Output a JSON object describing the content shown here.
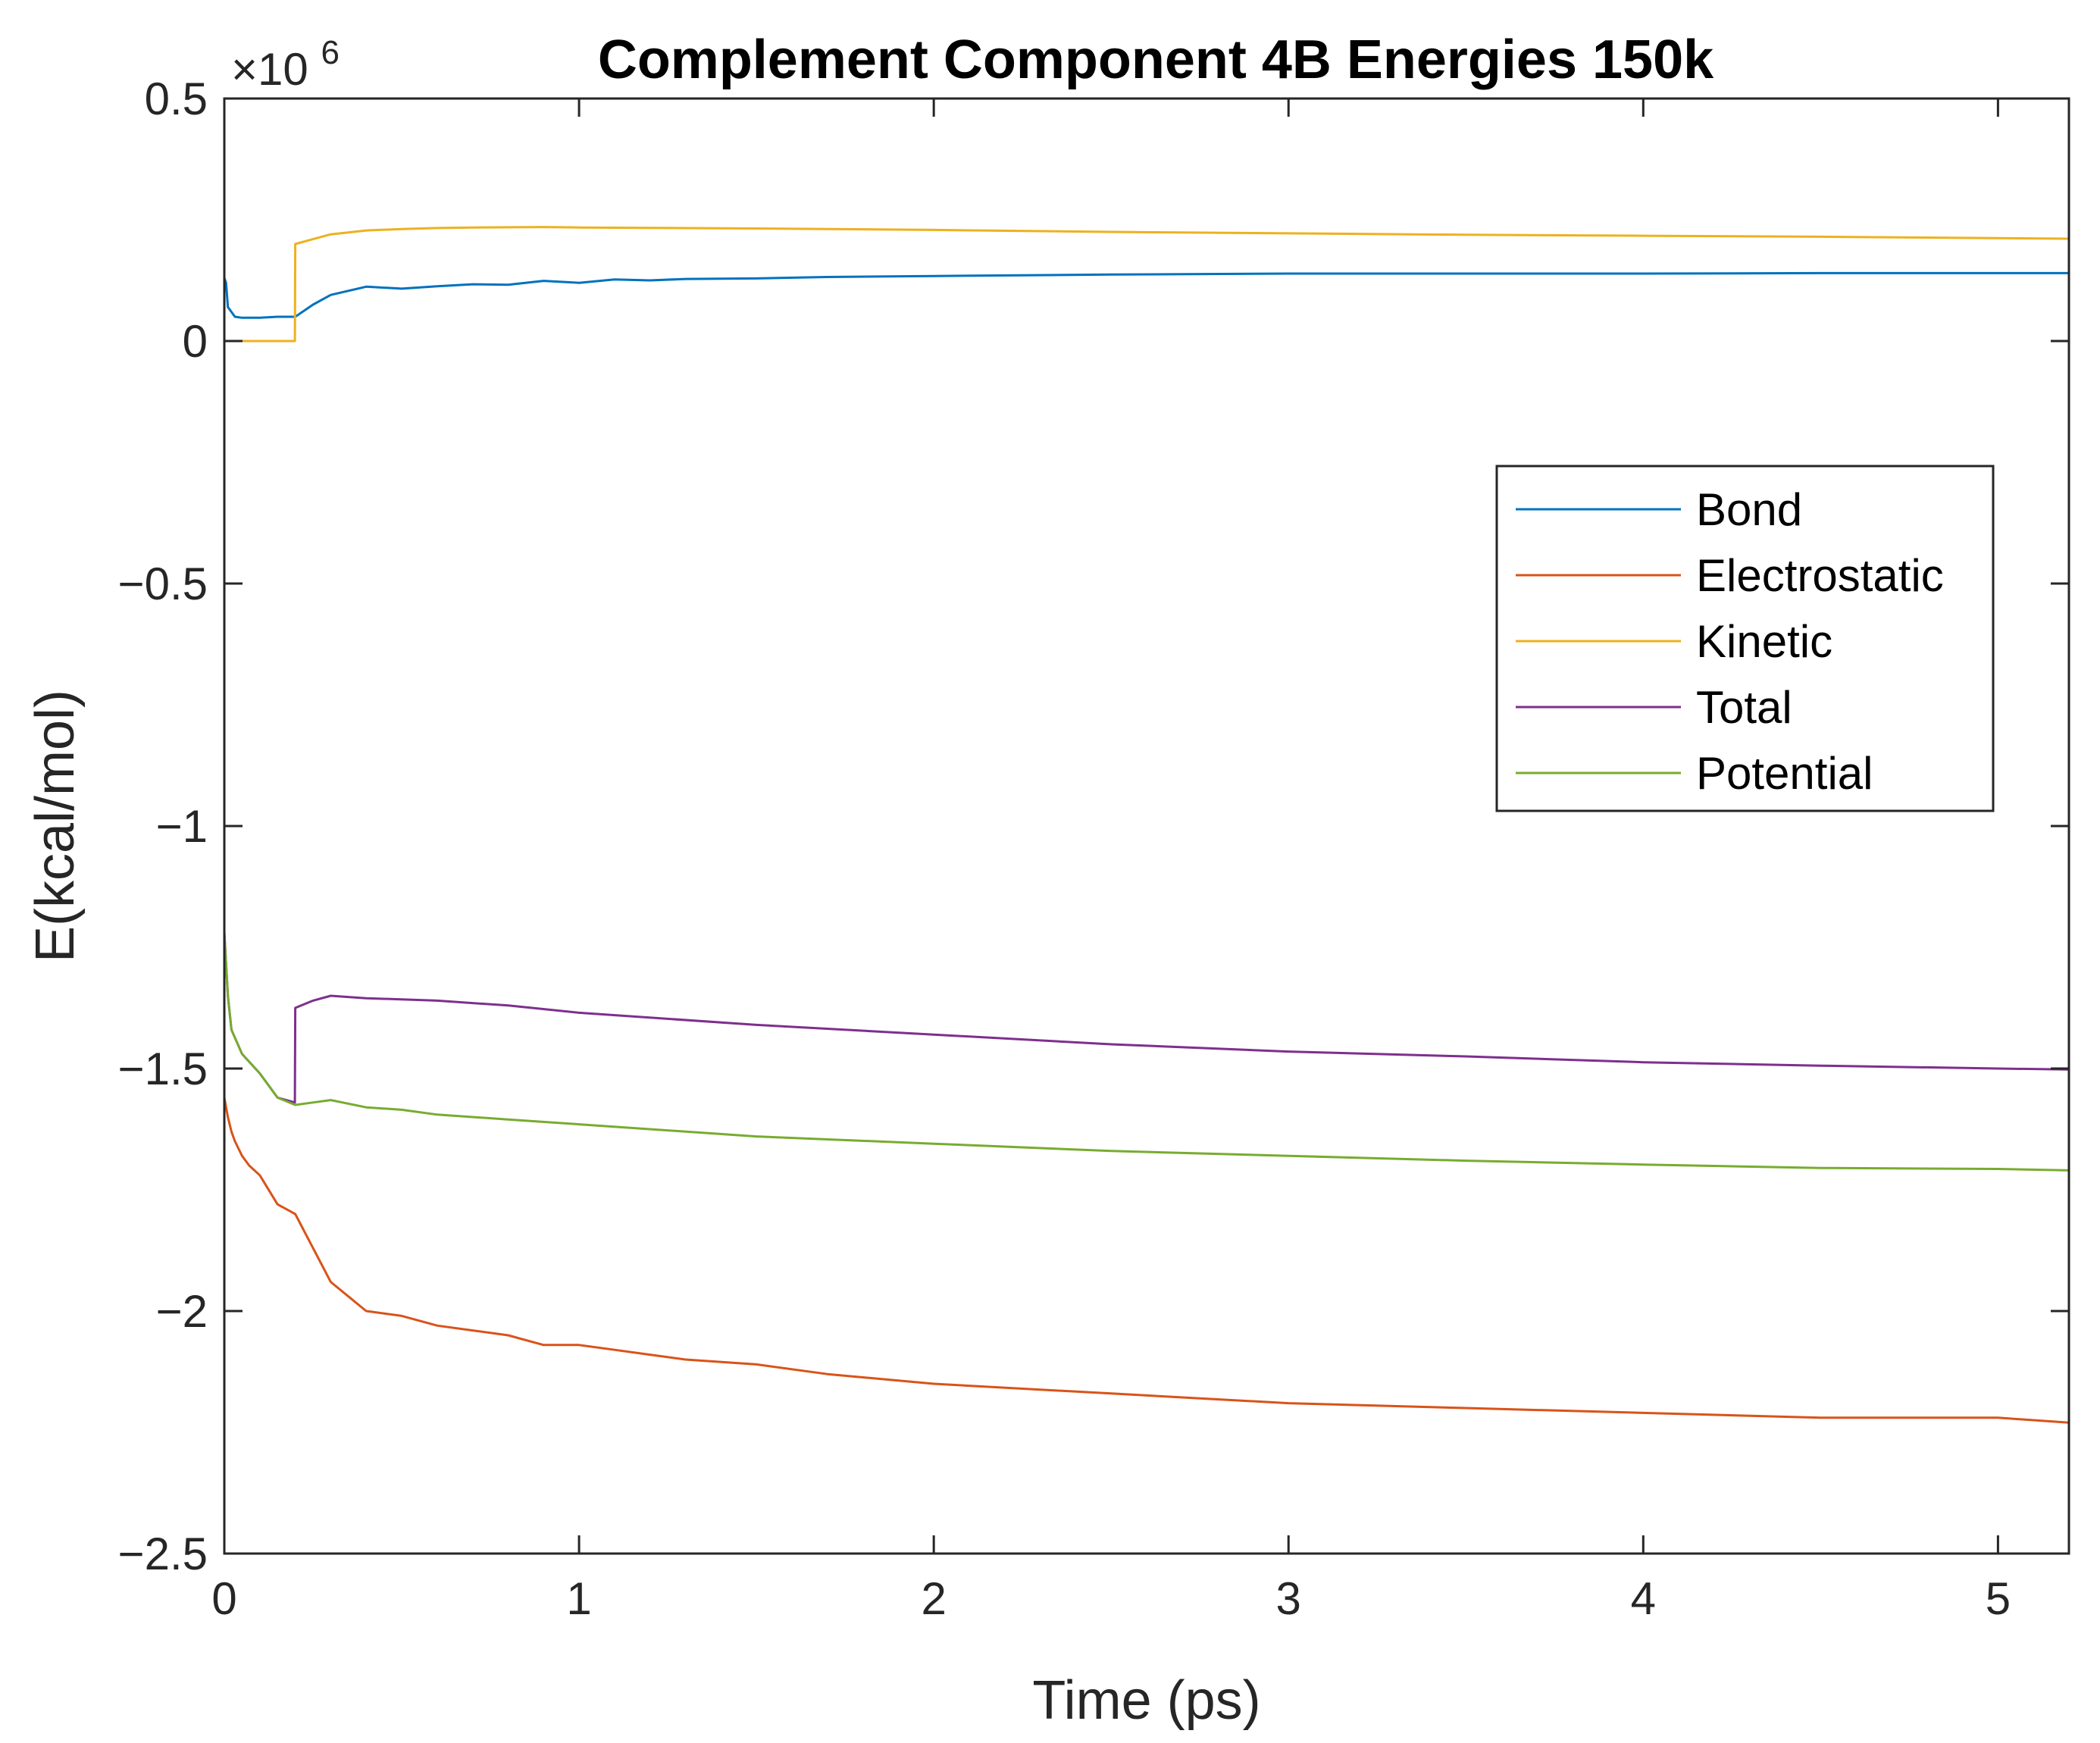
{
  "chart_data": {
    "type": "line",
    "title": "Complement Component 4B Energies 150k",
    "xlabel": "Time (ps)",
    "ylabel": "E(kcal/mol)",
    "y_multiplier_label": {
      "prefix": "×10",
      "exponent": "6"
    },
    "xlim": [
      0,
      5.2
    ],
    "ylim": [
      -2.5,
      0.5
    ],
    "x_ticks": [
      0,
      1,
      2,
      3,
      4,
      5
    ],
    "x_tick_labels": [
      "0",
      "1",
      "2",
      "3",
      "4",
      "5"
    ],
    "y_ticks": [
      0.5,
      0,
      -0.5,
      -1,
      -1.5,
      -2,
      -2.5
    ],
    "y_tick_labels": [
      "0.5",
      "0",
      "−0.5",
      "−1",
      "−1.5",
      "−2",
      "−2.5"
    ],
    "grid": false,
    "legend_position": "right",
    "series": [
      {
        "name": "Bond",
        "color": "#0072BD",
        "x": [
          0,
          0.005,
          0.01,
          0.02,
          0.03,
          0.05,
          0.08,
          0.1,
          0.15,
          0.2,
          0.25,
          0.3,
          0.4,
          0.5,
          0.6,
          0.7,
          0.8,
          0.9,
          1.0,
          1.1,
          1.2,
          1.3,
          1.5,
          1.7,
          2.0,
          2.5,
          3.0,
          3.5,
          4.0,
          4.5,
          5.0,
          5.2
        ],
        "y": [
          0.13,
          0.12,
          0.07,
          0.06,
          0.05,
          0.048,
          0.048,
          0.048,
          0.05,
          0.05,
          0.075,
          0.095,
          0.112,
          0.108,
          0.113,
          0.117,
          0.116,
          0.124,
          0.12,
          0.127,
          0.125,
          0.128,
          0.129,
          0.132,
          0.134,
          0.137,
          0.139,
          0.139,
          0.139,
          0.14,
          0.14,
          0.14
        ]
      },
      {
        "name": "Electrostatic",
        "color": "#D95319",
        "x": [
          0,
          0.01,
          0.02,
          0.03,
          0.05,
          0.07,
          0.1,
          0.15,
          0.2,
          0.25,
          0.3,
          0.35,
          0.4,
          0.5,
          0.6,
          0.7,
          0.8,
          0.9,
          1.0,
          1.1,
          1.2,
          1.3,
          1.5,
          1.7,
          2.0,
          2.5,
          3.0,
          3.5,
          4.0,
          4.5,
          5.0,
          5.2
        ],
        "y": [
          -1.56,
          -1.6,
          -1.63,
          -1.65,
          -1.68,
          -1.7,
          -1.72,
          -1.78,
          -1.8,
          -1.87,
          -1.94,
          -1.97,
          -2.0,
          -2.01,
          -2.03,
          -2.04,
          -2.05,
          -2.07,
          -2.07,
          -2.08,
          -2.09,
          -2.1,
          -2.11,
          -2.13,
          -2.15,
          -2.17,
          -2.19,
          -2.2,
          -2.21,
          -2.22,
          -2.22,
          -2.23
        ]
      },
      {
        "name": "Kinetic",
        "color": "#EDB120",
        "x": [
          0,
          0.1,
          0.199,
          0.2,
          0.25,
          0.3,
          0.4,
          0.5,
          0.6,
          0.7,
          0.9,
          1.0,
          1.5,
          2.0,
          2.5,
          3.0,
          3.5,
          4.0,
          4.5,
          5.0,
          5.2
        ],
        "y": [
          0.0,
          0.0,
          0.0,
          0.2,
          0.21,
          0.22,
          0.228,
          0.231,
          0.233,
          0.234,
          0.235,
          0.234,
          0.232,
          0.229,
          0.225,
          0.222,
          0.219,
          0.217,
          0.215,
          0.212,
          0.211
        ]
      },
      {
        "name": "Total",
        "color": "#7E2F8E",
        "x": [
          0,
          0.01,
          0.02,
          0.05,
          0.1,
          0.15,
          0.199,
          0.2,
          0.25,
          0.3,
          0.4,
          0.6,
          0.8,
          1.0,
          1.5,
          2.0,
          2.5,
          3.0,
          3.5,
          4.0,
          4.5,
          5.0,
          5.2
        ],
        "y": [
          -1.22,
          -1.35,
          -1.42,
          -1.47,
          -1.51,
          -1.56,
          -1.57,
          -1.375,
          -1.36,
          -1.35,
          -1.355,
          -1.36,
          -1.37,
          -1.385,
          -1.41,
          -1.43,
          -1.45,
          -1.465,
          -1.475,
          -1.487,
          -1.494,
          -1.5,
          -1.502
        ]
      },
      {
        "name": "Potential",
        "color": "#77AC30",
        "x": [
          0,
          0.01,
          0.02,
          0.05,
          0.1,
          0.15,
          0.2,
          0.25,
          0.3,
          0.4,
          0.5,
          0.6,
          0.8,
          1.0,
          1.5,
          2.0,
          2.5,
          3.0,
          3.5,
          4.0,
          4.5,
          5.0,
          5.2
        ],
        "y": [
          -1.22,
          -1.35,
          -1.42,
          -1.47,
          -1.51,
          -1.56,
          -1.575,
          -1.57,
          -1.565,
          -1.58,
          -1.585,
          -1.595,
          -1.605,
          -1.615,
          -1.64,
          -1.655,
          -1.67,
          -1.68,
          -1.69,
          -1.698,
          -1.705,
          -1.707,
          -1.71
        ]
      }
    ]
  }
}
